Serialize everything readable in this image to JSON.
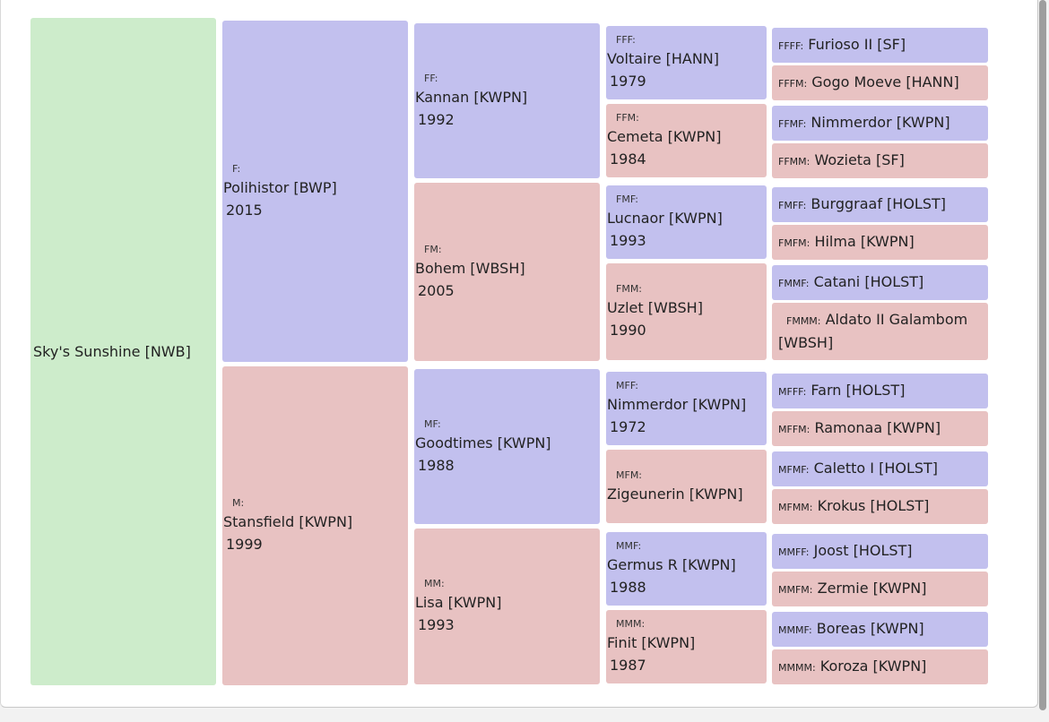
{
  "root": {
    "name": "Sky's Sunshine [NWB]"
  },
  "g2": {
    "F": {
      "code": "F:",
      "name": "Polihistor [BWP]",
      "year": "2015"
    },
    "M": {
      "code": "M:",
      "name": "Stansfield [KWPN]",
      "year": "1999"
    }
  },
  "g3": {
    "FF": {
      "code": "FF:",
      "name": "Kannan [KWPN]",
      "year": "1992"
    },
    "FM": {
      "code": "FM:",
      "name": "Bohem [WBSH]",
      "year": "2005"
    },
    "MF": {
      "code": "MF:",
      "name": "Goodtimes [KWPN]",
      "year": "1988"
    },
    "MM": {
      "code": "MM:",
      "name": "Lisa [KWPN]",
      "year": "1993"
    }
  },
  "g4": {
    "FFF": {
      "code": "FFF:",
      "name": "Voltaire [HANN]",
      "year": "1979"
    },
    "FFM": {
      "code": "FFM:",
      "name": "Cemeta [KWPN]",
      "year": "1984"
    },
    "FMF": {
      "code": "FMF:",
      "name": "Lucnaor [KWPN]",
      "year": "1993"
    },
    "FMM": {
      "code": "FMM:",
      "name": "Uzlet [WBSH]",
      "year": "1990"
    },
    "MFF": {
      "code": "MFF:",
      "name": "Nimmerdor [KWPN]",
      "year": "1972"
    },
    "MFM": {
      "code": "MFM:",
      "name": "Zigeunerin [KWPN]"
    },
    "MMF": {
      "code": "MMF:",
      "name": "Germus R [KWPN]",
      "year": "1988"
    },
    "MMM": {
      "code": "MMM:",
      "name": "Finit [KWPN]",
      "year": "1987"
    }
  },
  "g5": {
    "FFFF": {
      "code": "FFFF:",
      "name": "Furioso II [SF]"
    },
    "FFFM": {
      "code": "FFFM:",
      "name": "Gogo Moeve [HANN]"
    },
    "FFMF": {
      "code": "FFMF:",
      "name": "Nimmerdor [KWPN]"
    },
    "FFMM": {
      "code": "FFMM:",
      "name": "Wozieta [SF]"
    },
    "FMFF": {
      "code": "FMFF:",
      "name": "Burggraaf [HOLST]"
    },
    "FMFM": {
      "code": "FMFM:",
      "name": "Hilma [KWPN]"
    },
    "FMMF": {
      "code": "FMMF:",
      "name": "Catani [HOLST]"
    },
    "FMMM": {
      "code": "FMMM:",
      "name": "Aldato II Galambom [WBSH]"
    },
    "MFFF": {
      "code": "MFFF:",
      "name": "Farn [HOLST]"
    },
    "MFFM": {
      "code": "MFFM:",
      "name": "Ramonaa [KWPN]"
    },
    "MFMF": {
      "code": "MFMF:",
      "name": "Caletto I [HOLST]"
    },
    "MFMM": {
      "code": "MFMM:",
      "name": "Krokus [HOLST]"
    },
    "MMFF": {
      "code": "MMFF:",
      "name": "Joost [HOLST]"
    },
    "MMFM": {
      "code": "MMFM:",
      "name": "Zermie [KWPN]"
    },
    "MMMF": {
      "code": "MMMF:",
      "name": "Boreas [KWPN]"
    },
    "MMMM": {
      "code": "MMMM:",
      "name": "Koroza [KWPN]"
    }
  }
}
